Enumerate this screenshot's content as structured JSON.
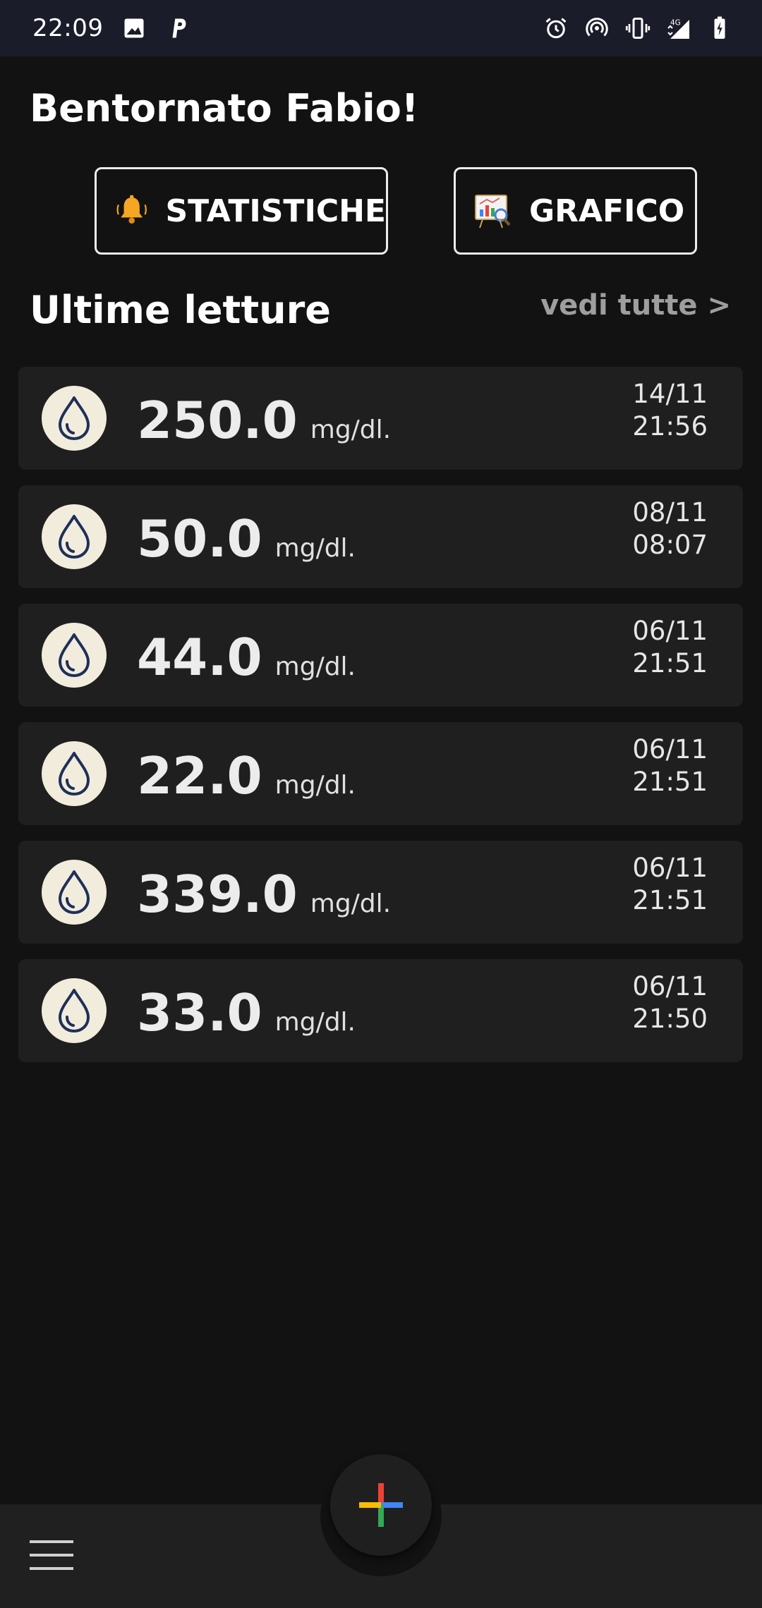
{
  "status_bar": {
    "time": "22:09",
    "left_icons": [
      "image-icon",
      "parking-app-icon"
    ],
    "right_icons": [
      "alarm-icon",
      "hotspot-icon",
      "vibrate-icon",
      "signal-4g-icon",
      "battery-charging-icon"
    ],
    "network": "4G"
  },
  "header": {
    "greeting": "Bentornato Fabio!"
  },
  "buttons": {
    "statistics_label": "STATISTICHE",
    "chart_label": "GRAFICO"
  },
  "readings_section": {
    "title": "Ultime letture",
    "see_all": "vedi tutte >"
  },
  "readings": [
    {
      "value": "250.0",
      "unit": "mg/dl.",
      "date": "14/11",
      "time": "21:56"
    },
    {
      "value": "50.0",
      "unit": "mg/dl.",
      "date": "08/11",
      "time": "08:07"
    },
    {
      "value": "44.0",
      "unit": "mg/dl.",
      "date": "06/11",
      "time": "21:51"
    },
    {
      "value": "22.0",
      "unit": "mg/dl.",
      "date": "06/11",
      "time": "21:51"
    },
    {
      "value": "339.0",
      "unit": "mg/dl.",
      "date": "06/11",
      "time": "21:51"
    },
    {
      "value": "33.0",
      "unit": "mg/dl.",
      "date": "06/11",
      "time": "21:50"
    }
  ],
  "colors": {
    "background": "#121212",
    "card": "#1f1f1f",
    "drop_circle": "#f2ecdc",
    "drop_stroke": "#1e2f5a",
    "see_all": "#9e9e9e",
    "plus_red": "#ea4335",
    "plus_blue": "#4285f4",
    "plus_green": "#34a853",
    "plus_yellow": "#fbbc05"
  }
}
